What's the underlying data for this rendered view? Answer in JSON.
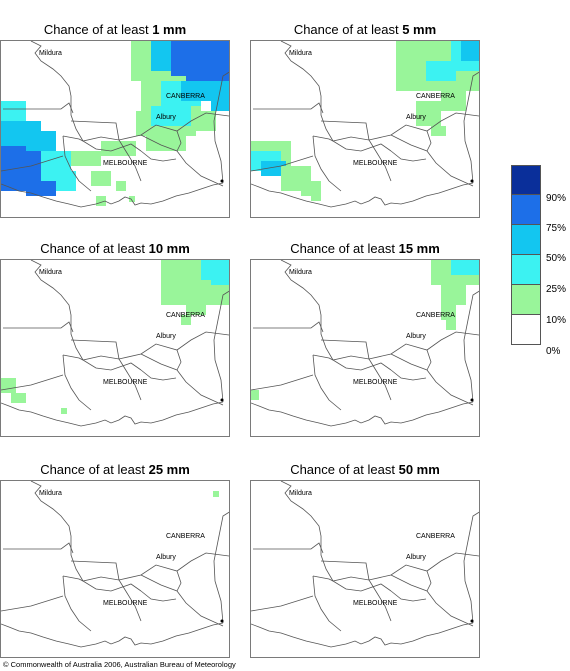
{
  "panels": [
    {
      "title_prefix": "Chance of at least ",
      "amount": "1 mm"
    },
    {
      "title_prefix": "Chance of at least ",
      "amount": "5 mm"
    },
    {
      "title_prefix": "Chance of at least ",
      "amount": "10 mm"
    },
    {
      "title_prefix": "Chance of at least ",
      "amount": "15 mm"
    },
    {
      "title_prefix": "Chance of at least ",
      "amount": "25 mm"
    },
    {
      "title_prefix": "Chance of at least ",
      "amount": "50 mm"
    }
  ],
  "places": {
    "mildura": "Mildura",
    "canberra": "CANBERRA",
    "albury": "Albury",
    "melbourne": "MELBOURNE"
  },
  "legend": {
    "labels": [
      "90%",
      "75%",
      "50%",
      "25%",
      "10%",
      "0%"
    ],
    "colors": [
      "#0a2f9a",
      "#1d6fe8",
      "#13c6f0",
      "#3cf2f2",
      "#99f59a",
      "#ffffff"
    ]
  },
  "copyright": "© Commonwealth of Australia 2006, Australian Bureau of Meteorology"
}
